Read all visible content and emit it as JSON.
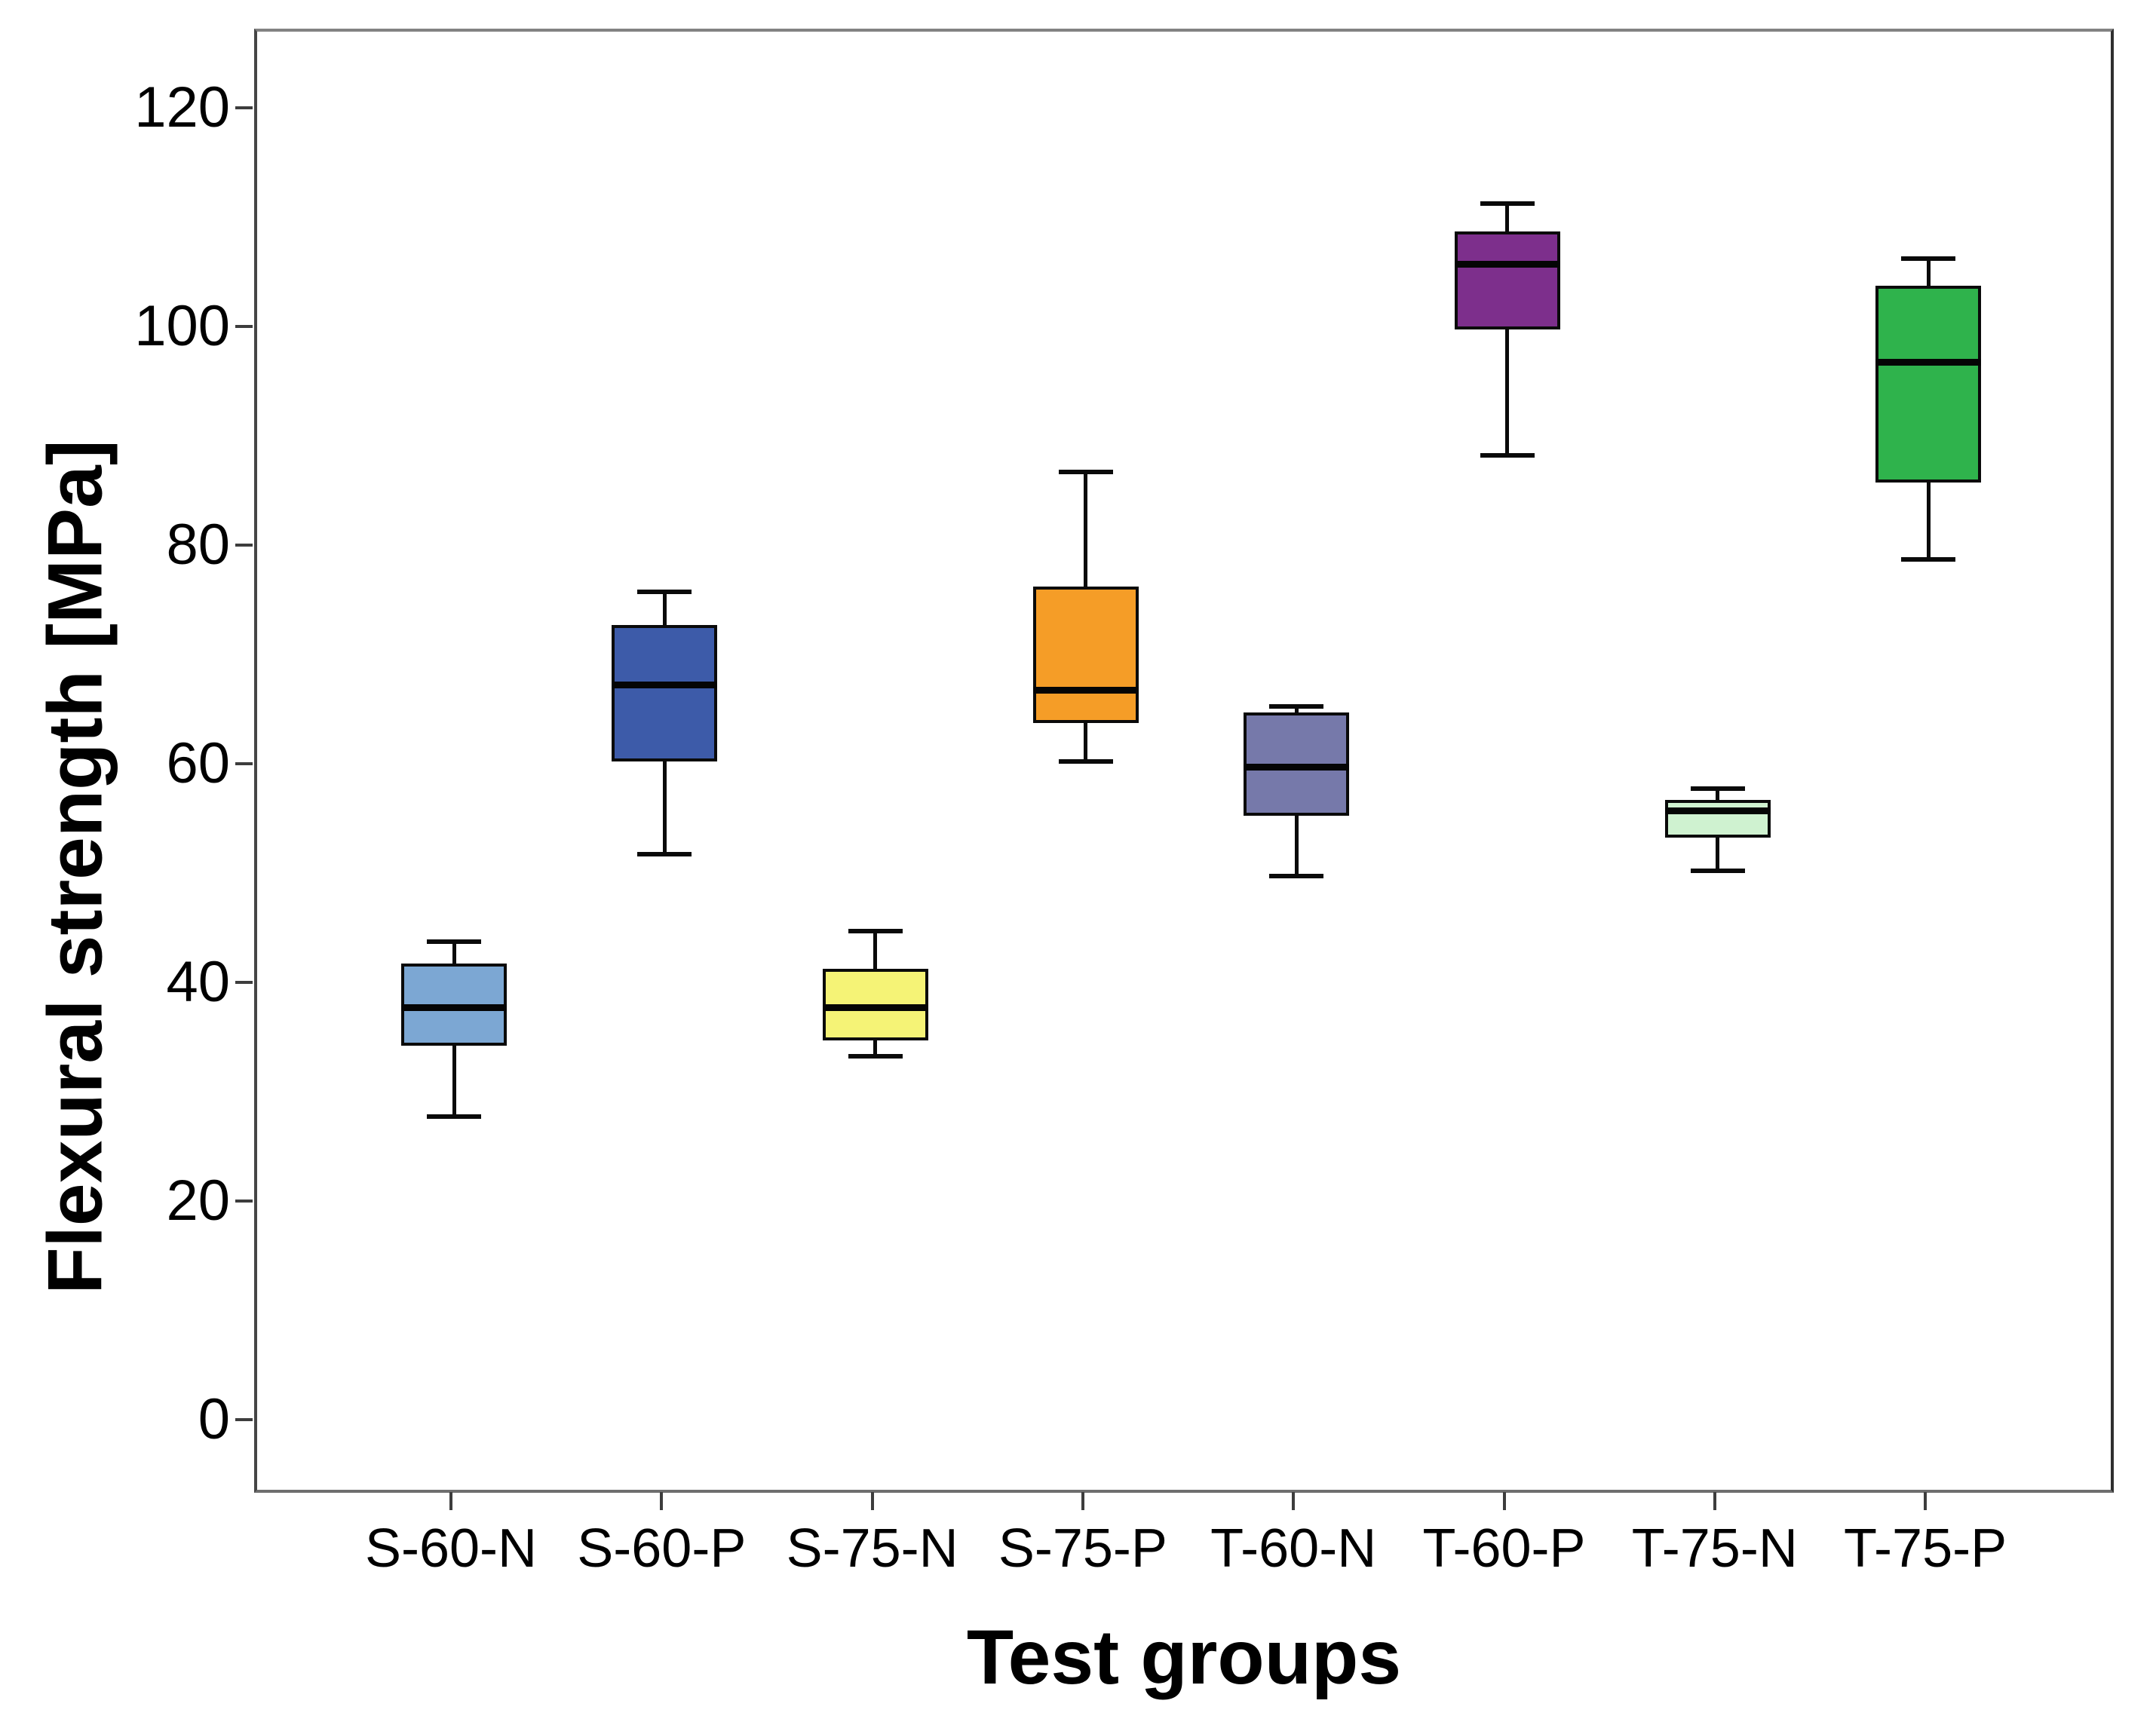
{
  "chart_data": {
    "type": "box",
    "title": "",
    "xlabel": "Test groups",
    "ylabel": "Flexural strength [MPa]",
    "yticks": [
      120,
      100,
      80,
      60,
      40,
      20,
      0
    ],
    "ylim": [
      -7,
      127
    ],
    "grid": false,
    "legend": false,
    "axis_color": "#3d3d3d",
    "box_outline_color": "#0a0a0a",
    "groups": [
      {
        "label": "S-60-N",
        "color": "#7CA7D3",
        "min": 28,
        "q1": 34.5,
        "median": 38,
        "q3": 42,
        "max": 44
      },
      {
        "label": "S-60-P",
        "color": "#3D5BA9",
        "min": 52,
        "q1": 60.5,
        "median": 67.5,
        "q3": 73,
        "max": 76
      },
      {
        "label": "S-75-N",
        "color": "#F5F376",
        "min": 33.5,
        "q1": 35,
        "median": 38,
        "q3": 41.5,
        "max": 45
      },
      {
        "label": "S-75-P",
        "color": "#F59D27",
        "min": 60.5,
        "q1": 64,
        "median": 67,
        "q3": 76.5,
        "max": 87
      },
      {
        "label": "T-60-N",
        "color": "#7679AA",
        "min": 50,
        "q1": 55.5,
        "median": 60,
        "q3": 65,
        "max": 65.5
      },
      {
        "label": "T-60-P",
        "color": "#7D2F8C",
        "min": 88.5,
        "q1": 100,
        "median": 106,
        "q3": 109,
        "max": 111.5
      },
      {
        "label": "T-75-N",
        "color": "#CFF2D0",
        "min": 50.5,
        "q1": 53.5,
        "median": 56,
        "q3": 57,
        "max": 58
      },
      {
        "label": "T-75-P",
        "color": "#2FB34C",
        "min": 79,
        "q1": 86,
        "median": 97,
        "q3": 104,
        "max": 106.5
      }
    ]
  }
}
